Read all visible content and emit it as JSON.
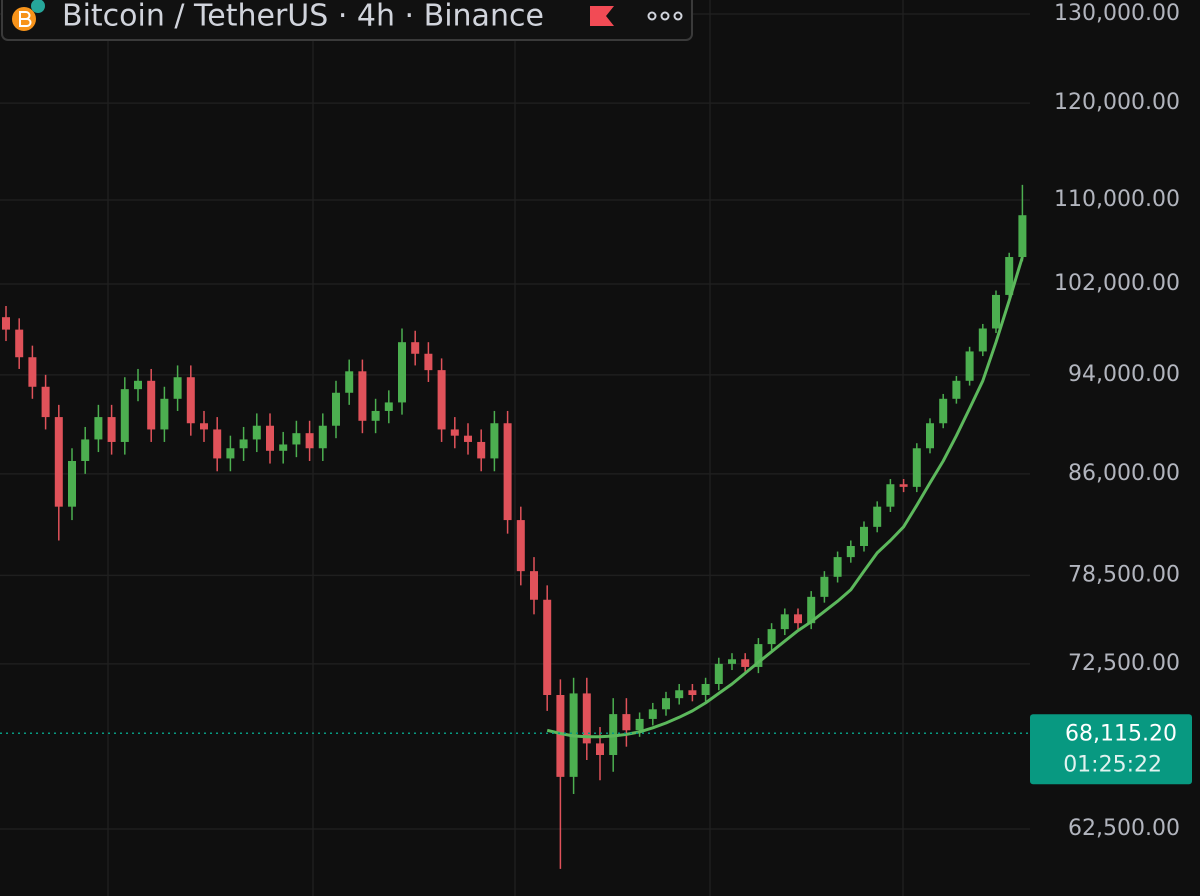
{
  "chart_data": {
    "type": "candlestick",
    "title": "Bitcoin / TetherUS · 4h · Binance",
    "log_scale": true,
    "grid": true,
    "up_color": "#4caf50",
    "down_color": "#e0525a",
    "curve_color": "#5cb85c",
    "price_color": "#089981",
    "ylim": [
      58850,
      131650
    ],
    "yticks": [
      {
        "value": 130000,
        "label": "130,000.00"
      },
      {
        "value": 120000,
        "label": "120,000.00"
      },
      {
        "value": 110000,
        "label": "110,000.00"
      },
      {
        "value": 102000,
        "label": "102,000.00"
      },
      {
        "value": 94000,
        "label": "94,000.00"
      },
      {
        "value": 86000,
        "label": "86,000.00"
      },
      {
        "value": 78500,
        "label": "78,500.00"
      },
      {
        "value": 72500,
        "label": "72,500.00"
      },
      {
        "value": 62500,
        "label": "62,500.00"
      }
    ],
    "open": [
      99000,
      97900,
      95500,
      93000,
      90500,
      83500,
      87000,
      88700,
      90500,
      88500,
      92800,
      93500,
      89500,
      92000,
      93800,
      90000,
      89500,
      87200,
      88000,
      88700,
      89800,
      87800,
      88300,
      89200,
      88000,
      89800,
      92500,
      94300,
      90200,
      91000,
      91700,
      96800,
      95800,
      94400,
      89500,
      89000,
      88500,
      87200,
      90000,
      82500,
      78800,
      76800,
      70500,
      65500,
      70600,
      67500,
      66800,
      69300,
      68300,
      69000,
      69600,
      70300,
      70800,
      70500,
      71200,
      72500,
      72800,
      72300,
      73800,
      74800,
      75800,
      75200,
      77000,
      78400,
      79800,
      80600,
      82000,
      83500,
      85200,
      85000,
      88000,
      90000,
      92000,
      93500,
      96000,
      98000,
      101000,
      104500
    ],
    "high": [
      100000,
      98900,
      96500,
      94000,
      91500,
      88000,
      89700,
      91500,
      91500,
      93800,
      94500,
      94500,
      93000,
      94800,
      94800,
      91000,
      90500,
      89000,
      89700,
      90800,
      90800,
      89300,
      90200,
      90200,
      90800,
      93500,
      95300,
      95300,
      92000,
      92700,
      98000,
      97800,
      96800,
      95400,
      90500,
      90000,
      89500,
      91000,
      91000,
      83500,
      79800,
      77800,
      71500,
      71600,
      71600,
      68500,
      70300,
      70300,
      69400,
      70000,
      70700,
      71200,
      71200,
      71600,
      72900,
      73200,
      73200,
      74200,
      75200,
      76200,
      76200,
      77400,
      78800,
      80200,
      81000,
      82400,
      83900,
      85600,
      85600,
      88400,
      90400,
      92400,
      93900,
      96400,
      98400,
      101400,
      104900,
      111500
    ],
    "low": [
      96900,
      94500,
      92000,
      89500,
      81000,
      82500,
      86000,
      87700,
      87500,
      87500,
      91800,
      88500,
      88500,
      91000,
      89000,
      88500,
      86200,
      86200,
      87000,
      87700,
      86800,
      86800,
      87300,
      87000,
      87000,
      88800,
      91500,
      89200,
      89200,
      90000,
      90700,
      94800,
      93400,
      88500,
      88000,
      87500,
      86200,
      86200,
      81500,
      77800,
      75800,
      69500,
      60300,
      64500,
      66500,
      65300,
      65800,
      67300,
      67900,
      68600,
      69200,
      69900,
      70100,
      70100,
      70800,
      72100,
      71900,
      71900,
      73400,
      74400,
      74800,
      74800,
      76600,
      78000,
      79400,
      80200,
      81600,
      83100,
      84600,
      84600,
      87600,
      89600,
      91600,
      93100,
      95600,
      97600,
      100600,
      104100
    ],
    "close": [
      97900,
      95500,
      93000,
      90500,
      83500,
      87000,
      88700,
      90500,
      88500,
      92800,
      93500,
      89500,
      92000,
      93800,
      90000,
      89500,
      87200,
      88000,
      88700,
      89800,
      87800,
      88300,
      89200,
      88000,
      89800,
      92500,
      94300,
      90200,
      91000,
      91700,
      96800,
      95800,
      94400,
      89500,
      89000,
      88500,
      87200,
      90000,
      82500,
      78800,
      76800,
      70500,
      65500,
      70600,
      67500,
      66800,
      69300,
      68300,
      69000,
      69600,
      70300,
      70800,
      70500,
      71200,
      72500,
      72800,
      72300,
      73800,
      74800,
      75800,
      75200,
      77000,
      78400,
      79800,
      80600,
      82000,
      83500,
      85200,
      85000,
      88000,
      90000,
      92000,
      93500,
      96000,
      98000,
      101000,
      104500,
      108500
    ],
    "curve": [
      null,
      null,
      null,
      null,
      null,
      null,
      null,
      null,
      null,
      null,
      null,
      null,
      null,
      null,
      null,
      null,
      null,
      null,
      null,
      null,
      null,
      null,
      null,
      null,
      null,
      null,
      null,
      null,
      null,
      null,
      null,
      null,
      null,
      null,
      null,
      null,
      null,
      null,
      null,
      null,
      null,
      68300,
      68100,
      67950,
      67900,
      67900,
      67950,
      68050,
      68200,
      68450,
      68750,
      69100,
      69500,
      70000,
      70600,
      71200,
      71900,
      72600,
      73300,
      74000,
      74700,
      75300,
      76000,
      76700,
      77500,
      78800,
      80100,
      81000,
      82000,
      83600,
      85300,
      87000,
      89000,
      91200,
      93500,
      96800,
      100500,
      104500
    ],
    "last_price": {
      "value": 68115.2,
      "label": "68,115.20"
    },
    "countdown": "01:25:22"
  }
}
